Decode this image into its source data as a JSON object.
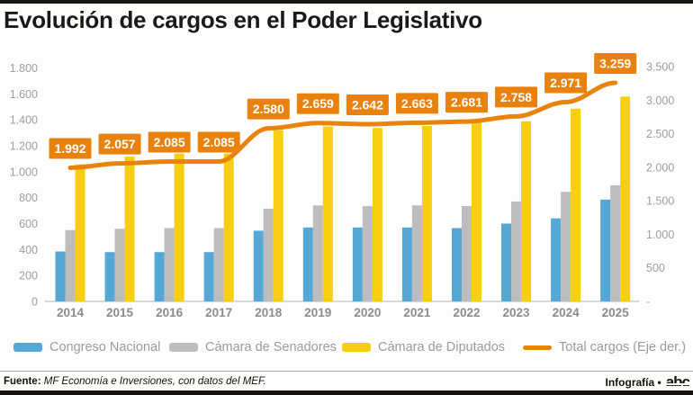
{
  "title": "Evolución de cargos en el Poder Legislativo",
  "chart_data": {
    "type": "bar",
    "categories": [
      "2014",
      "2015",
      "2016",
      "2017",
      "2018",
      "2019",
      "2020",
      "2021",
      "2022",
      "2023",
      "2024",
      "2025"
    ],
    "series": [
      {
        "name": "Congreso Nacional",
        "type": "bar",
        "axis": "left",
        "color": "#55a7d5",
        "values": [
          385,
          380,
          380,
          380,
          545,
          570,
          570,
          570,
          565,
          600,
          640,
          785
        ]
      },
      {
        "name": "Cámara de Senadores",
        "type": "bar",
        "axis": "left",
        "color": "#bdbdbd",
        "values": [
          550,
          560,
          565,
          565,
          715,
          740,
          735,
          740,
          735,
          770,
          845,
          895
        ]
      },
      {
        "name": "Cámara de Diputados",
        "type": "bar",
        "axis": "left",
        "color": "#f7ce10",
        "values": [
          1057,
          1117,
          1140,
          1140,
          1320,
          1349,
          1337,
          1353,
          1381,
          1388,
          1486,
          1579
        ]
      },
      {
        "name": "Total cargos (Eje der.)",
        "type": "line",
        "axis": "right",
        "color": "#e8830c",
        "values": [
          1992,
          2057,
          2085,
          2085,
          2580,
          2659,
          2642,
          2663,
          2681,
          2758,
          2971,
          3259
        ]
      }
    ],
    "data_labels": {
      "on_series": "Total cargos (Eje der.)",
      "labels": [
        "1.992",
        "2.057",
        "2.085",
        "2.085",
        "2.580",
        "2.659",
        "2.642",
        "2.663",
        "2.681",
        "2.758",
        "2.971",
        "3.259"
      ],
      "box_color": "#e8820c",
      "text_color": "#ffffff"
    },
    "left_axis": {
      "min": 0,
      "max": 1800,
      "step": 200,
      "tick_labels": [
        "0",
        "200",
        "400",
        "600",
        "800",
        "1.000",
        "1.200",
        "1.400",
        "1.600",
        "1.800"
      ]
    },
    "right_axis": {
      "min": 0,
      "max": 3500,
      "step": 500,
      "zero_label": "-",
      "tick_labels": [
        "-",
        "500",
        "1.000",
        "1.500",
        "2.000",
        "2.500",
        "3.000",
        "3.500"
      ]
    },
    "grid": false,
    "legend_position": "bottom",
    "axis_text_color": "#9e9e9e",
    "category_text_color": "#8c8c8c",
    "baseline_color": "#d9d9d9"
  },
  "footer": {
    "source_label": "Fuente:",
    "source_text": "MF Economía e Inversiones, con datos del MEF.",
    "credit": "Infografía •",
    "logo_text": "abc"
  }
}
